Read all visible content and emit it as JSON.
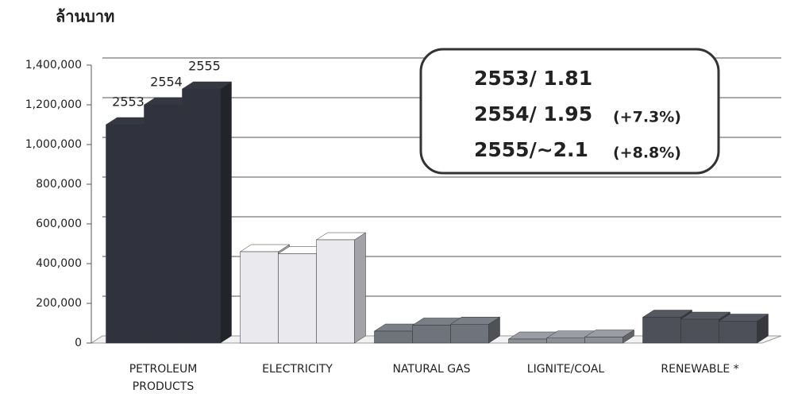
{
  "chart_data": {
    "type": "bar3d",
    "y_label": "ล้านบาท",
    "categories": [
      "PETROLEUM PRODUCTS",
      "ELECTRICITY",
      "NATURAL GAS",
      "LIGNITE/COAL",
      "RENEWABLE *"
    ],
    "colors": [
      "#30333d",
      "#e9e9ee",
      "#6f737b",
      "#8c8f95",
      "#4d5058"
    ],
    "series": [
      {
        "name": "2553",
        "values": [
          1100000,
          460000,
          60000,
          20000,
          130000
        ]
      },
      {
        "name": "2554",
        "values": [
          1200000,
          450000,
          90000,
          25000,
          120000
        ]
      },
      {
        "name": "2555",
        "values": [
          1280000,
          520000,
          95000,
          30000,
          110000
        ]
      }
    ],
    "ylim": [
      0,
      1400000
    ],
    "yticks": [
      0,
      {
        "value": 200000,
        "label": "200,000"
      },
      {
        "value": 400000,
        "label": "400,000"
      },
      {
        "value": 600000,
        "label": "600,000"
      },
      {
        "value": 800000,
        "label": "800,000"
      },
      {
        "value": 1000000,
        "label": "1,000,000"
      },
      {
        "value": 1200000,
        "label": "1,200,000"
      },
      {
        "value": 1400000,
        "label": "1,400,000"
      }
    ],
    "grid": true,
    "annotations": [
      "2553/ 1.81",
      "2554/ 1.95",
      "(+7.3%)",
      "2555/~2.1",
      "(+8.8%)"
    ]
  }
}
